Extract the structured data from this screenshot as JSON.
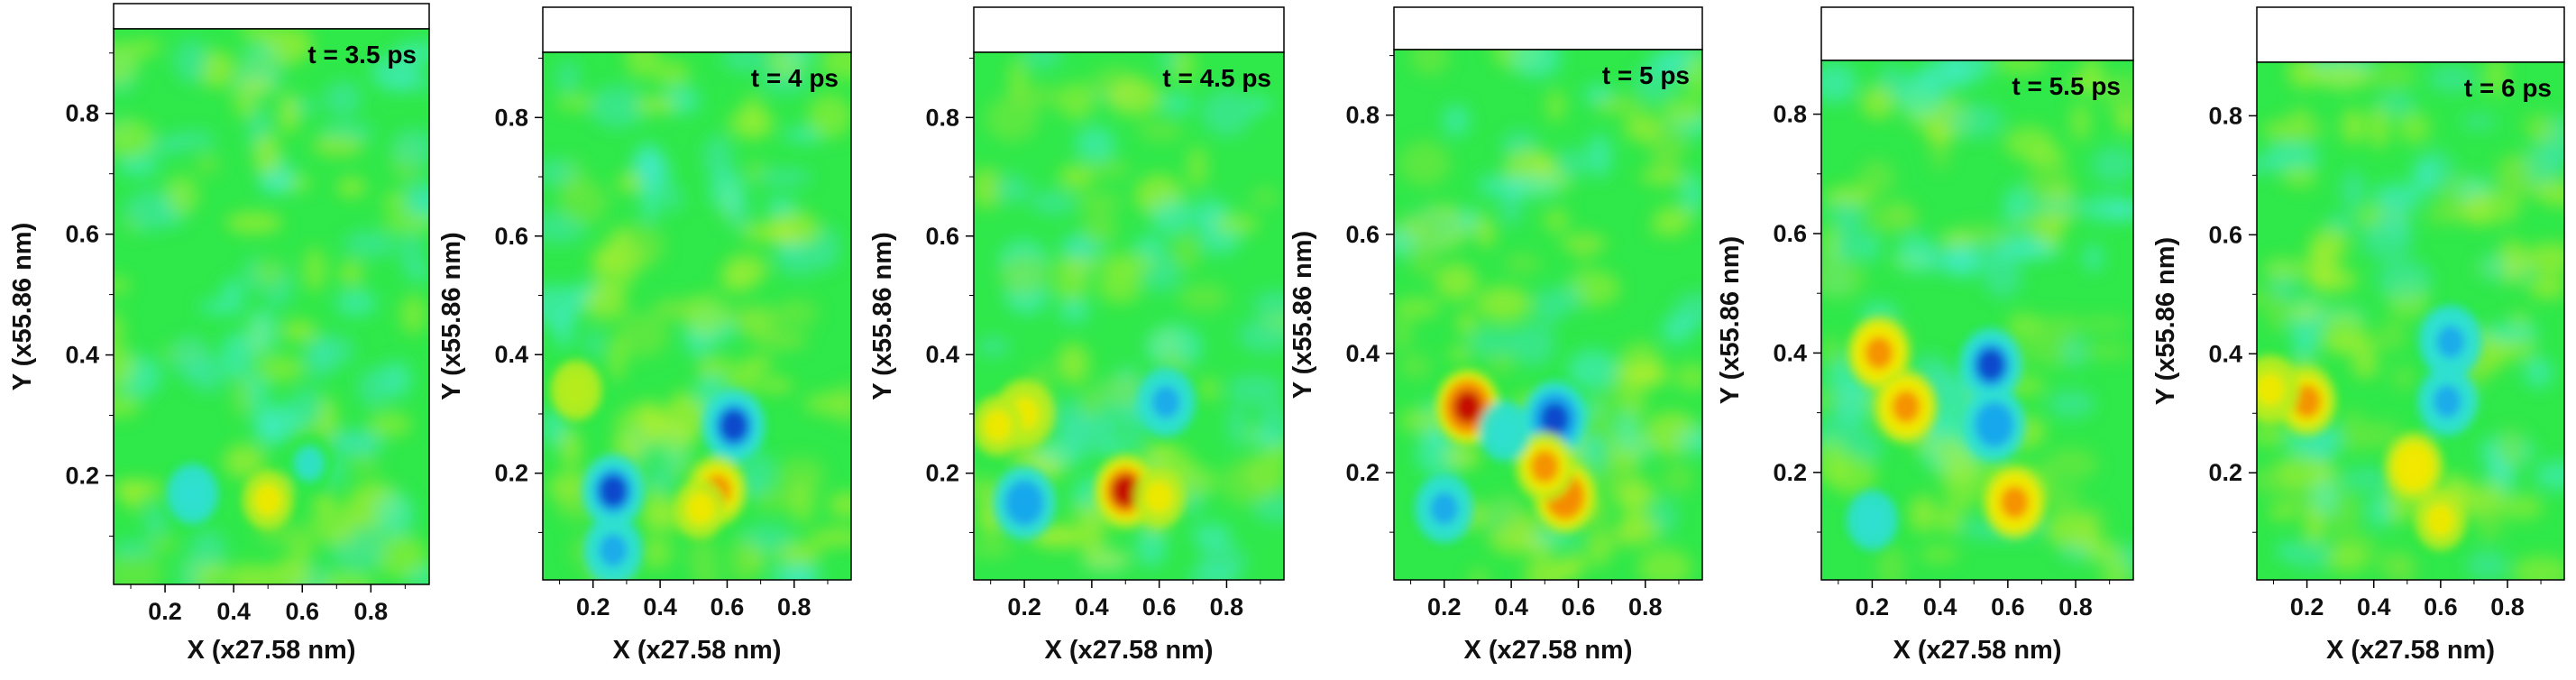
{
  "chart_data": [
    {
      "type": "heatmap",
      "annotation": "t = 3.5 ps",
      "xlabel": "X (x27.58 nm)",
      "ylabel": "Y (x55.86 nm)",
      "x_ticks": [
        "0.2",
        "0.4",
        "0.6",
        "0.8"
      ],
      "y_ticks": [
        "0.2",
        "0.4",
        "0.6",
        "0.8"
      ],
      "xlim": [
        0.05,
        0.97
      ],
      "ylim": [
        0.02,
        0.94
      ],
      "colorscale": [
        "#0b3fc9",
        "#19a6ec",
        "#2fe0d2",
        "#2fe84a",
        "#b8ec1c",
        "#f3e800",
        "#f58a00",
        "#c00000"
      ],
      "features": [
        {
          "x": 0.5,
          "y": 0.16,
          "level": 0.35
        },
        {
          "x": 0.28,
          "y": 0.17,
          "level": -0.3
        },
        {
          "x": 0.62,
          "y": 0.22,
          "level": -0.25
        }
      ]
    },
    {
      "type": "heatmap",
      "annotation": "t = 4 ps",
      "xlabel": "X (x27.58 nm)",
      "ylabel": "Y (x55.86 nm)",
      "x_ticks": [
        "0.2",
        "0.4",
        "0.6",
        "0.8"
      ],
      "y_ticks": [
        "0.2",
        "0.4",
        "0.6",
        "0.8"
      ],
      "xlim": [
        0.05,
        0.97
      ],
      "ylim": [
        0.02,
        0.91
      ],
      "colorscale": [
        "#0b3fc9",
        "#19a6ec",
        "#2fe0d2",
        "#2fe84a",
        "#b8ec1c",
        "#f3e800",
        "#f58a00",
        "#c00000"
      ],
      "features": [
        {
          "x": 0.26,
          "y": 0.17,
          "level": -0.85
        },
        {
          "x": 0.26,
          "y": 0.07,
          "level": -0.6
        },
        {
          "x": 0.62,
          "y": 0.28,
          "level": -0.8
        },
        {
          "x": 0.57,
          "y": 0.17,
          "level": 0.65
        },
        {
          "x": 0.52,
          "y": 0.14,
          "level": 0.45
        },
        {
          "x": 0.15,
          "y": 0.34,
          "level": 0.3
        }
      ]
    },
    {
      "type": "heatmap",
      "annotation": "t = 4.5 ps",
      "xlabel": "X (x27.58 nm)",
      "ylabel": "Y (x55.86 nm)",
      "x_ticks": [
        "0.2",
        "0.4",
        "0.6",
        "0.8"
      ],
      "y_ticks": [
        "0.2",
        "0.4",
        "0.6",
        "0.8"
      ],
      "xlim": [
        0.05,
        0.97
      ],
      "ylim": [
        0.02,
        0.91
      ],
      "colorscale": [
        "#0b3fc9",
        "#19a6ec",
        "#2fe0d2",
        "#2fe84a",
        "#b8ec1c",
        "#f3e800",
        "#f58a00",
        "#c00000"
      ],
      "features": [
        {
          "x": 0.2,
          "y": 0.15,
          "level": -0.75
        },
        {
          "x": 0.62,
          "y": 0.32,
          "level": -0.55
        },
        {
          "x": 0.5,
          "y": 0.17,
          "level": 0.85
        },
        {
          "x": 0.6,
          "y": 0.16,
          "level": 0.4
        },
        {
          "x": 0.2,
          "y": 0.3,
          "level": 0.5
        },
        {
          "x": 0.12,
          "y": 0.28,
          "level": 0.4
        }
      ]
    },
    {
      "type": "heatmap",
      "annotation": "t = 5 ps",
      "xlabel": "X (x27.58 nm)",
      "ylabel": "Y (x55.86 nm)",
      "x_ticks": [
        "0.2",
        "0.4",
        "0.6",
        "0.8"
      ],
      "y_ticks": [
        "0.2",
        "0.4",
        "0.6",
        "0.8"
      ],
      "xlim": [
        0.05,
        0.97
      ],
      "ylim": [
        0.02,
        0.91
      ],
      "colorscale": [
        "#0b3fc9",
        "#19a6ec",
        "#2fe0d2",
        "#2fe84a",
        "#b8ec1c",
        "#f3e800",
        "#f58a00",
        "#c00000"
      ],
      "features": [
        {
          "x": 0.27,
          "y": 0.31,
          "level": 1.0
        },
        {
          "x": 0.53,
          "y": 0.29,
          "level": -0.95
        },
        {
          "x": 0.2,
          "y": 0.14,
          "level": -0.65
        },
        {
          "x": 0.56,
          "y": 0.16,
          "level": 0.8
        },
        {
          "x": 0.5,
          "y": 0.21,
          "level": 0.6
        },
        {
          "x": 0.38,
          "y": 0.27,
          "level": -0.3
        }
      ]
    },
    {
      "type": "heatmap",
      "annotation": "t = 5.5 ps",
      "xlabel": "X (x27.58 nm)",
      "ylabel": "Y (x55.86 nm)",
      "x_ticks": [
        "0.2",
        "0.4",
        "0.6",
        "0.8"
      ],
      "y_ticks": [
        "0.2",
        "0.4",
        "0.6",
        "0.8"
      ],
      "xlim": [
        0.05,
        0.97
      ],
      "ylim": [
        0.02,
        0.89
      ],
      "colorscale": [
        "#0b3fc9",
        "#19a6ec",
        "#2fe0d2",
        "#2fe84a",
        "#b8ec1c",
        "#f3e800",
        "#f58a00",
        "#c00000"
      ],
      "features": [
        {
          "x": 0.22,
          "y": 0.4,
          "level": 0.7
        },
        {
          "x": 0.3,
          "y": 0.31,
          "level": 0.7
        },
        {
          "x": 0.55,
          "y": 0.38,
          "level": -0.85
        },
        {
          "x": 0.56,
          "y": 0.28,
          "level": -0.75
        },
        {
          "x": 0.62,
          "y": 0.15,
          "level": 0.75
        },
        {
          "x": 0.2,
          "y": 0.12,
          "level": -0.35
        }
      ]
    },
    {
      "type": "heatmap",
      "annotation": "t = 6 ps",
      "xlabel": "X (x27.58 nm)",
      "ylabel": "Y (x55.86 nm)",
      "x_ticks": [
        "0.2",
        "0.4",
        "0.6",
        "0.8"
      ],
      "y_ticks": [
        "0.2",
        "0.4",
        "0.6",
        "0.8"
      ],
      "xlim": [
        0.05,
        0.97
      ],
      "ylim": [
        0.02,
        0.89
      ],
      "colorscale": [
        "#0b3fc9",
        "#19a6ec",
        "#2fe0d2",
        "#2fe84a",
        "#b8ec1c",
        "#f3e800",
        "#f58a00",
        "#c00000"
      ],
      "features": [
        {
          "x": 0.2,
          "y": 0.32,
          "level": 0.6
        },
        {
          "x": 0.09,
          "y": 0.34,
          "level": 0.5
        },
        {
          "x": 0.63,
          "y": 0.42,
          "level": -0.7
        },
        {
          "x": 0.62,
          "y": 0.32,
          "level": -0.65
        },
        {
          "x": 0.52,
          "y": 0.21,
          "level": 0.55
        },
        {
          "x": 0.6,
          "y": 0.12,
          "level": 0.45
        }
      ]
    }
  ]
}
